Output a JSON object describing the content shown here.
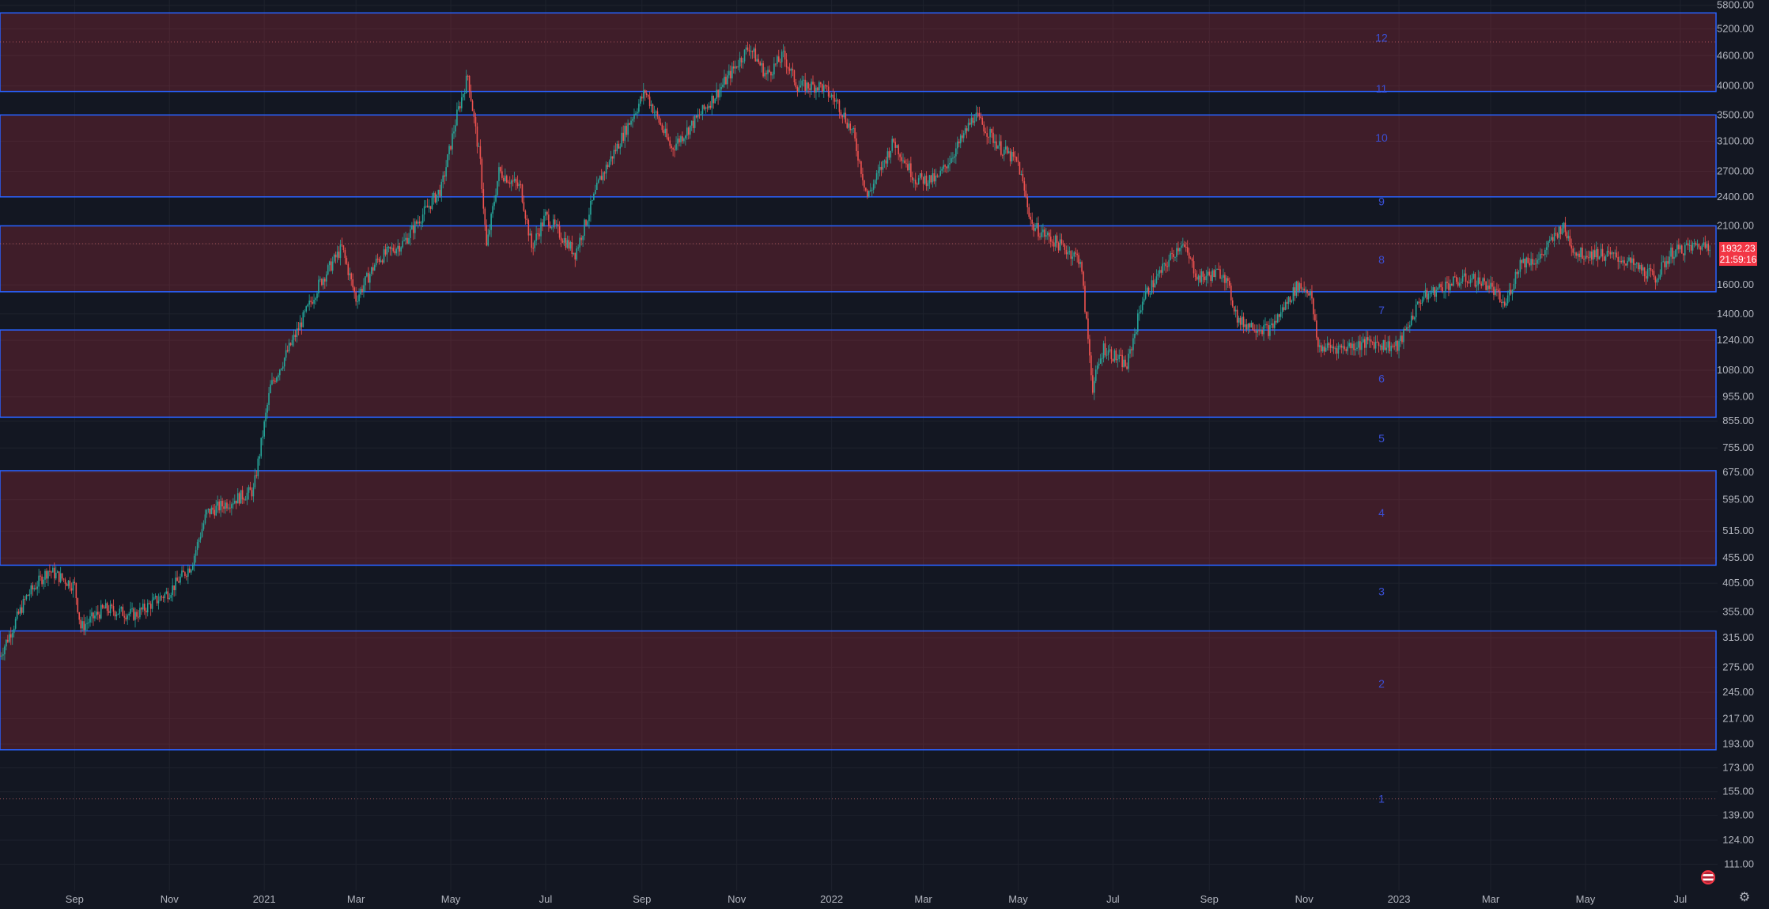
{
  "chart_data": {
    "type": "candlestick",
    "title": "",
    "y_scale": "log",
    "ylim": [
      100,
      5900
    ],
    "x_range": [
      "2020-07-15",
      "2023-07-25"
    ],
    "grid": true,
    "y_ticks": [
      "5800.00",
      "5200.00",
      "4600.00",
      "4000.00",
      "3500.00",
      "3100.00",
      "2700.00",
      "2400.00",
      "2100.00",
      "1932.23",
      "1600.00",
      "1400.00",
      "1240.00",
      "1080.00",
      "955.00",
      "855.00",
      "755.00",
      "675.00",
      "595.00",
      "515.00",
      "455.00",
      "405.00",
      "355.00",
      "315.00",
      "275.00",
      "245.00",
      "217.00",
      "193.00",
      "173.00",
      "155.00",
      "139.00",
      "124.00",
      "111.00"
    ],
    "x_ticks": [
      {
        "label": "Sep",
        "date": "2020-09-01"
      },
      {
        "label": "Nov",
        "date": "2020-11-01"
      },
      {
        "label": "2021",
        "date": "2021-01-01"
      },
      {
        "label": "Mar",
        "date": "2021-03-01"
      },
      {
        "label": "May",
        "date": "2021-05-01"
      },
      {
        "label": "Jul",
        "date": "2021-07-01"
      },
      {
        "label": "Sep",
        "date": "2021-09-01"
      },
      {
        "label": "Nov",
        "date": "2021-11-01"
      },
      {
        "label": "2022",
        "date": "2022-01-01"
      },
      {
        "label": "Mar",
        "date": "2022-03-01"
      },
      {
        "label": "May",
        "date": "2022-05-01"
      },
      {
        "label": "Jul",
        "date": "2022-07-01"
      },
      {
        "label": "Sep",
        "date": "2022-09-01"
      },
      {
        "label": "Nov",
        "date": "2022-11-01"
      },
      {
        "label": "2023",
        "date": "2023-01-01"
      },
      {
        "label": "Mar",
        "date": "2023-03-01"
      },
      {
        "label": "May",
        "date": "2023-05-01"
      },
      {
        "label": "Jul",
        "date": "2023-07-01"
      }
    ],
    "price_path": [
      [
        "2020-07-15",
        290
      ],
      [
        "2020-08-01",
        380
      ],
      [
        "2020-08-15",
        430
      ],
      [
        "2020-09-01",
        400
      ],
      [
        "2020-09-05",
        330
      ],
      [
        "2020-09-20",
        360
      ],
      [
        "2020-10-10",
        350
      ],
      [
        "2020-11-01",
        390
      ],
      [
        "2020-11-15",
        440
      ],
      [
        "2020-11-25",
        560
      ],
      [
        "2020-12-10",
        590
      ],
      [
        "2020-12-25",
        620
      ],
      [
        "2021-01-05",
        1000
      ],
      [
        "2021-01-20",
        1250
      ],
      [
        "2021-02-05",
        1600
      ],
      [
        "2021-02-20",
        1900
      ],
      [
        "2021-03-01",
        1500
      ],
      [
        "2021-03-15",
        1800
      ],
      [
        "2021-04-01",
        1950
      ],
      [
        "2021-04-10",
        2150
      ],
      [
        "2021-04-25",
        2500
      ],
      [
        "2021-05-05",
        3500
      ],
      [
        "2021-05-12",
        4200
      ],
      [
        "2021-05-20",
        2800
      ],
      [
        "2021-05-24",
        1900
      ],
      [
        "2021-06-01",
        2700
      ],
      [
        "2021-06-15",
        2500
      ],
      [
        "2021-06-22",
        1900
      ],
      [
        "2021-07-01",
        2200
      ],
      [
        "2021-07-20",
        1850
      ],
      [
        "2021-08-05",
        2600
      ],
      [
        "2021-08-20",
        3200
      ],
      [
        "2021-09-03",
        3900
      ],
      [
        "2021-09-20",
        3000
      ],
      [
        "2021-10-05",
        3400
      ],
      [
        "2021-10-20",
        3900
      ],
      [
        "2021-11-09",
        4800
      ],
      [
        "2021-11-20",
        4200
      ],
      [
        "2021-12-01",
        4600
      ],
      [
        "2021-12-10",
        4000
      ],
      [
        "2021-12-25",
        4000
      ],
      [
        "2022-01-05",
        3700
      ],
      [
        "2022-01-15",
        3200
      ],
      [
        "2022-01-24",
        2400
      ],
      [
        "2022-02-10",
        3100
      ],
      [
        "2022-02-24",
        2600
      ],
      [
        "2022-03-10",
        2600
      ],
      [
        "2022-03-25",
        3100
      ],
      [
        "2022-04-03",
        3500
      ],
      [
        "2022-04-20",
        3000
      ],
      [
        "2022-05-01",
        2800
      ],
      [
        "2022-05-10",
        2100
      ],
      [
        "2022-05-25",
        1950
      ],
      [
        "2022-06-10",
        1800
      ],
      [
        "2022-06-18",
        1000
      ],
      [
        "2022-06-25",
        1200
      ],
      [
        "2022-07-10",
        1100
      ],
      [
        "2022-07-20",
        1500
      ],
      [
        "2022-08-01",
        1700
      ],
      [
        "2022-08-14",
        1950
      ],
      [
        "2022-08-25",
        1650
      ],
      [
        "2022-09-10",
        1700
      ],
      [
        "2022-09-20",
        1350
      ],
      [
        "2022-10-10",
        1300
      ],
      [
        "2022-10-28",
        1600
      ],
      [
        "2022-11-05",
        1550
      ],
      [
        "2022-11-10",
        1200
      ],
      [
        "2022-11-25",
        1200
      ],
      [
        "2022-12-15",
        1230
      ],
      [
        "2022-12-31",
        1200
      ],
      [
        "2023-01-15",
        1500
      ],
      [
        "2023-01-31",
        1600
      ],
      [
        "2023-02-15",
        1650
      ],
      [
        "2023-02-28",
        1600
      ],
      [
        "2023-03-10",
        1450
      ],
      [
        "2023-03-20",
        1780
      ],
      [
        "2023-04-01",
        1800
      ],
      [
        "2023-04-16",
        2100
      ],
      [
        "2023-04-25",
        1850
      ],
      [
        "2023-05-10",
        1850
      ],
      [
        "2023-05-25",
        1800
      ],
      [
        "2023-06-15",
        1650
      ],
      [
        "2023-06-25",
        1850
      ],
      [
        "2023-07-05",
        1900
      ],
      [
        "2023-07-20",
        1932
      ]
    ],
    "resistance_zones": [
      {
        "low": 3900,
        "high": 5600,
        "color": "#f23645"
      },
      {
        "low": 2400,
        "high": 3500,
        "color": "#f23645"
      },
      {
        "low": 1550,
        "high": 2100,
        "color": "#f23645"
      },
      {
        "low": 870,
        "high": 1300,
        "color": "#f23645"
      },
      {
        "low": 440,
        "high": 680,
        "color": "#f23645"
      },
      {
        "low": 188,
        "high": 325,
        "color": "#f23645"
      }
    ],
    "level_labels": [
      {
        "label": "12",
        "value": 5000
      },
      {
        "label": "11",
        "value": 3950
      },
      {
        "label": "10",
        "value": 3150
      },
      {
        "label": "9",
        "value": 2350
      },
      {
        "label": "8",
        "value": 1800
      },
      {
        "label": "7",
        "value": 1425
      },
      {
        "label": "6",
        "value": 1040
      },
      {
        "label": "5",
        "value": 790
      },
      {
        "label": "4",
        "value": 560
      },
      {
        "label": "3",
        "value": 390
      },
      {
        "label": "2",
        "value": 255
      },
      {
        "label": "1",
        "value": 150
      }
    ],
    "dotted_levels": [
      4900,
      1935,
      150
    ],
    "last_price": "1932.23",
    "countdown": "21:59:16",
    "colors": {
      "up": "#26a69a",
      "down": "#ef5350",
      "zone_fill": "#f23645",
      "zone_border": "#2962ff",
      "grid": "#1e222d",
      "bg": "#131722"
    }
  }
}
